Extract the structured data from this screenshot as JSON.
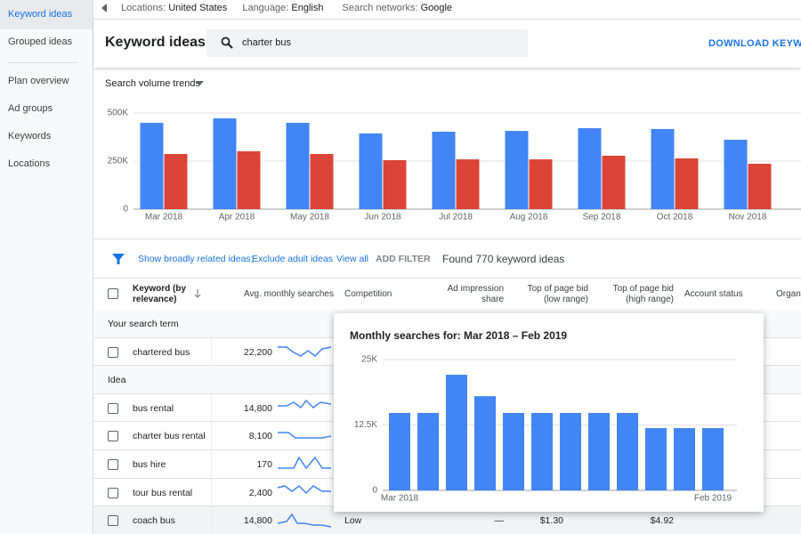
{
  "topbar": {
    "locations_label": "Locations:",
    "locations": "United States",
    "language_label": "Language:",
    "language": "English",
    "networks_label": "Search networks:",
    "networks": "Google"
  },
  "sidebar": {
    "items": [
      "Keyword ideas",
      "Grouped ideas",
      "Plan overview",
      "Ad groups",
      "Keywords",
      "Locations"
    ]
  },
  "header": {
    "title": "Keyword ideas",
    "search": "charter bus",
    "download": "DOWNLOAD KEYWORDS"
  },
  "chart_data": [
    {
      "type": "bar",
      "title": "Search volume trends",
      "categories": [
        "Mar 2018",
        "Apr 2018",
        "May 2018",
        "Jun 2018",
        "Jul 2018",
        "Aug 2018",
        "Sep 2018",
        "Oct 2018",
        "Nov 2018"
      ],
      "series": [
        {
          "color": "#4285f4",
          "values": [
            449000,
            472000,
            449000,
            394000,
            403000,
            407000,
            421000,
            417000,
            361000
          ]
        },
        {
          "color": "#db4437",
          "values": [
            287000,
            301000,
            287000,
            255000,
            259000,
            259000,
            278000,
            264000,
            236000
          ]
        }
      ],
      "ylim": [
        0,
        500000
      ],
      "yticks": [
        0,
        {
          "value": 250000,
          "label": "250K"
        },
        {
          "value": 500000,
          "label": "500K"
        }
      ],
      "grid": true
    },
    {
      "type": "bar",
      "title": "Monthly searches for: Mar 2018 – Feb 2019",
      "categories": [
        "Mar 2018",
        null,
        null,
        null,
        null,
        null,
        null,
        null,
        null,
        null,
        null,
        "Feb 2019"
      ],
      "values": [
        14800,
        14800,
        22100,
        18000,
        14800,
        14800,
        14800,
        14800,
        14800,
        11900,
        11900,
        11900
      ],
      "color": "#4285f4",
      "ylim": [
        0,
        25000
      ],
      "yticks": [
        0,
        {
          "value": 12500,
          "label": "12.5K"
        },
        {
          "value": 25000,
          "label": "25K"
        }
      ],
      "grid": true
    }
  ],
  "filters": {
    "suggestions": [
      "Show broadly related ideas;",
      "Exclude adult ideas"
    ],
    "view_all": "View all",
    "add_filter": "ADD FILTER",
    "found": "Found 770 keyword ideas"
  },
  "table": {
    "headers": [
      "Keyword (by relevance)",
      "Avg. monthly searches",
      "Competition",
      "Ad impression share",
      "Top of page bid (low range)",
      "Top of page bid (high range)",
      "Account status",
      "Organic"
    ],
    "sections": [
      {
        "title": "Your search term",
        "rows": [
          [
            "chartered bus",
            "22,200"
          ]
        ]
      },
      {
        "title": "Idea",
        "rows": [
          [
            "bus rental",
            "14,800"
          ],
          [
            "charter bus rental",
            "8,100"
          ],
          [
            "bus hire",
            "170"
          ],
          [
            "tour bus rental",
            "2,400"
          ],
          [
            "coach bus",
            "14,800",
            "Low",
            "—",
            "$1.30",
            "$4.92"
          ]
        ]
      }
    ]
  }
}
